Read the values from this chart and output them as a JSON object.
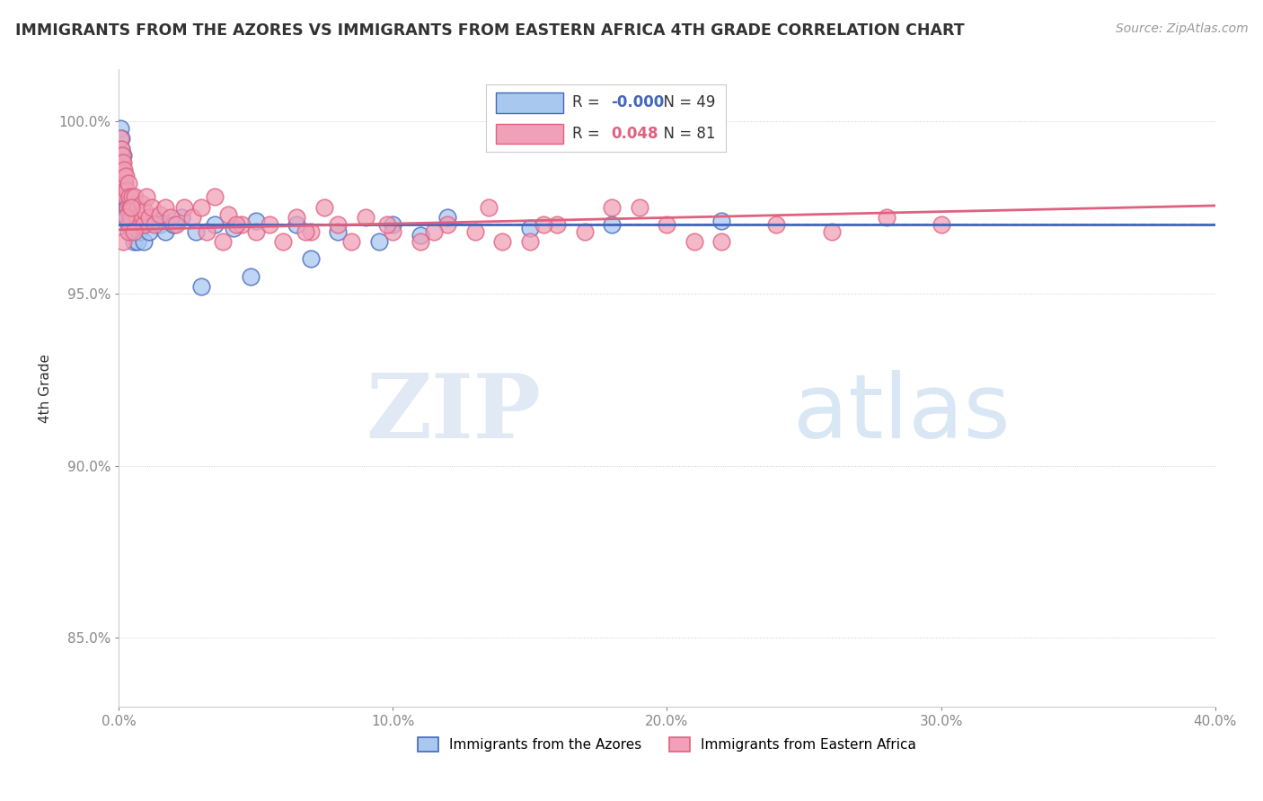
{
  "title": "IMMIGRANTS FROM THE AZORES VS IMMIGRANTS FROM EASTERN AFRICA 4TH GRADE CORRELATION CHART",
  "source": "Source: ZipAtlas.com",
  "xlabel": "",
  "ylabel": "4th Grade",
  "xlim": [
    0.0,
    40.0
  ],
  "ylim": [
    83.0,
    101.5
  ],
  "yticks": [
    85.0,
    90.0,
    95.0,
    100.0
  ],
  "ytick_labels": [
    "85.0%",
    "90.0%",
    "95.0%",
    "100.0%"
  ],
  "xticks": [
    0.0,
    10.0,
    20.0,
    30.0,
    40.0
  ],
  "xtick_labels": [
    "0.0%",
    "10.0%",
    "20.0%",
    "30.0%",
    "40.0%"
  ],
  "legend_label1": "Immigrants from the Azores",
  "legend_label2": "Immigrants from Eastern Africa",
  "R1": "-0.000",
  "N1": "49",
  "R2": "0.048",
  "N2": "81",
  "color_blue": "#A8C8F0",
  "color_pink": "#F0A0B8",
  "color_blue_line": "#4466BB",
  "color_pink_line": "#E06080",
  "color_dashed": "#7799CC",
  "background_color": "#FFFFFF",
  "watermark_zip": "ZIP",
  "watermark_atlas": "atlas",
  "azores_x": [
    0.05,
    0.08,
    0.1,
    0.12,
    0.15,
    0.18,
    0.2,
    0.22,
    0.25,
    0.28,
    0.3,
    0.32,
    0.35,
    0.38,
    0.4,
    0.42,
    0.45,
    0.48,
    0.5,
    0.55,
    0.6,
    0.65,
    0.7,
    0.75,
    0.8,
    0.9,
    1.0,
    1.1,
    1.3,
    1.5,
    1.7,
    2.0,
    2.3,
    2.8,
    3.5,
    4.2,
    5.0,
    6.5,
    8.0,
    10.0,
    12.0,
    15.0,
    18.0,
    22.0,
    3.0,
    4.8,
    7.0,
    9.5,
    11.0
  ],
  "azores_y": [
    99.8,
    99.5,
    99.2,
    98.8,
    99.0,
    98.5,
    97.8,
    98.2,
    98.0,
    97.5,
    97.2,
    97.8,
    97.0,
    97.3,
    97.5,
    97.8,
    96.8,
    97.0,
    97.2,
    96.5,
    96.8,
    97.0,
    96.5,
    96.8,
    97.0,
    96.5,
    97.0,
    96.8,
    97.2,
    97.0,
    96.8,
    97.0,
    97.2,
    96.8,
    97.0,
    96.9,
    97.1,
    97.0,
    96.8,
    97.0,
    97.2,
    96.9,
    97.0,
    97.1,
    95.2,
    95.5,
    96.0,
    96.5,
    96.7
  ],
  "eastern_x": [
    0.05,
    0.08,
    0.1,
    0.12,
    0.14,
    0.16,
    0.18,
    0.2,
    0.22,
    0.25,
    0.27,
    0.3,
    0.32,
    0.35,
    0.38,
    0.4,
    0.43,
    0.46,
    0.5,
    0.55,
    0.6,
    0.65,
    0.7,
    0.75,
    0.8,
    0.85,
    0.9,
    0.95,
    1.0,
    1.1,
    1.2,
    1.3,
    1.5,
    1.7,
    1.9,
    2.1,
    2.4,
    2.7,
    3.0,
    3.5,
    4.0,
    4.5,
    5.0,
    5.5,
    6.0,
    6.5,
    7.0,
    7.5,
    8.0,
    9.0,
    10.0,
    11.0,
    12.0,
    13.0,
    14.0,
    15.0,
    16.0,
    18.0,
    20.0,
    22.0,
    24.0,
    26.0,
    28.0,
    30.0,
    6.8,
    8.5,
    9.8,
    11.5,
    13.5,
    15.5,
    17.0,
    19.0,
    21.0,
    3.2,
    3.8,
    4.3,
    0.15,
    0.25,
    0.35,
    0.45,
    0.55
  ],
  "eastern_y": [
    99.5,
    99.2,
    98.8,
    99.0,
    98.5,
    98.8,
    98.2,
    98.6,
    98.0,
    98.4,
    97.8,
    98.0,
    97.5,
    98.2,
    97.0,
    97.8,
    97.5,
    97.2,
    97.8,
    97.5,
    97.8,
    97.2,
    97.5,
    97.0,
    97.3,
    97.6,
    97.0,
    97.4,
    97.8,
    97.2,
    97.5,
    97.0,
    97.3,
    97.5,
    97.2,
    97.0,
    97.5,
    97.2,
    97.5,
    97.8,
    97.3,
    97.0,
    96.8,
    97.0,
    96.5,
    97.2,
    96.8,
    97.5,
    97.0,
    97.2,
    96.8,
    96.5,
    97.0,
    96.8,
    96.5,
    96.5,
    97.0,
    97.5,
    97.0,
    96.5,
    97.0,
    96.8,
    97.2,
    97.0,
    96.8,
    96.5,
    97.0,
    96.8,
    97.5,
    97.0,
    96.8,
    97.5,
    96.5,
    96.8,
    96.5,
    97.0,
    96.5,
    97.2,
    96.8,
    97.5,
    96.8
  ],
  "blue_line_y": 97.0,
  "pink_line_x0": 0.0,
  "pink_line_y0": 96.85,
  "pink_line_x1": 40.0,
  "pink_line_y1": 97.55,
  "dashed_line_y": 97.0
}
